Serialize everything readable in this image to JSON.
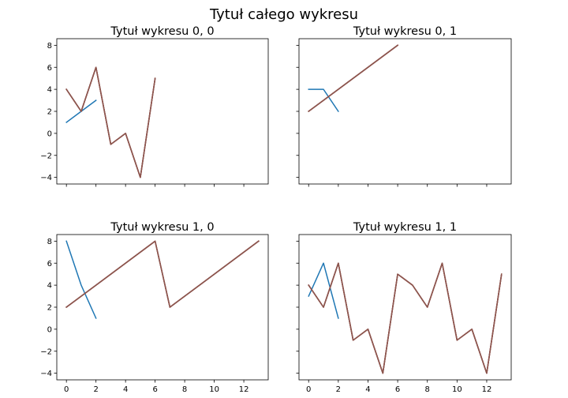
{
  "figure": {
    "suptitle": "Tytuł całego wykresu"
  },
  "chart_data": [
    {
      "type": "line",
      "title": "Tytuł wykresu 0, 0",
      "xlabel": "",
      "ylabel": "",
      "xlim": [
        -0.65,
        13.65
      ],
      "ylim": [
        -4.6,
        8.6
      ],
      "yticks": [
        -4,
        -2,
        0,
        2,
        4,
        6,
        8
      ],
      "xticks": [
        0,
        2,
        4,
        6,
        8,
        10,
        12
      ],
      "show_xticklabels": false,
      "show_yticklabels": true,
      "grid": false,
      "series": [
        {
          "color": "#1f77b4",
          "x": [
            0,
            1,
            2
          ],
          "y": [
            1,
            2,
            3
          ]
        },
        {
          "color": "#ff7f0e",
          "x": [
            0,
            1,
            2,
            3,
            4,
            5,
            6
          ],
          "y": [
            4,
            2,
            6,
            -1,
            0,
            -4,
            5
          ]
        },
        {
          "color": "#2ca02c",
          "x": [
            0,
            1,
            2,
            3,
            4,
            5,
            6
          ],
          "y": [
            4,
            2,
            6,
            -1,
            0,
            -4,
            5
          ]
        },
        {
          "color": "#d62728",
          "x": [
            0,
            1,
            2,
            3,
            4,
            5,
            6
          ],
          "y": [
            4,
            2,
            6,
            -1,
            0,
            -4,
            5
          ]
        },
        {
          "color": "#9467bd",
          "x": [
            0,
            1,
            2,
            3,
            4,
            5,
            6
          ],
          "y": [
            4,
            2,
            6,
            -1,
            0,
            -4,
            5
          ]
        },
        {
          "color": "#8c564b",
          "x": [
            0,
            1,
            2,
            3,
            4,
            5,
            6
          ],
          "y": [
            4,
            2,
            6,
            -1,
            0,
            -4,
            5
          ]
        }
      ]
    },
    {
      "type": "line",
      "title": "Tytuł wykresu 0, 1",
      "xlabel": "",
      "ylabel": "",
      "xlim": [
        -0.65,
        13.65
      ],
      "ylim": [
        -4.6,
        8.6
      ],
      "yticks": [
        -4,
        -2,
        0,
        2,
        4,
        6,
        8
      ],
      "xticks": [
        0,
        2,
        4,
        6,
        8,
        10,
        12
      ],
      "show_xticklabels": false,
      "show_yticklabels": false,
      "grid": false,
      "series": [
        {
          "color": "#1f77b4",
          "x": [
            0,
            1,
            2
          ],
          "y": [
            4,
            4,
            2
          ]
        },
        {
          "color": "#ff7f0e",
          "x": [
            0,
            6
          ],
          "y": [
            2,
            8
          ]
        },
        {
          "color": "#2ca02c",
          "x": [
            0,
            6
          ],
          "y": [
            2,
            8
          ]
        },
        {
          "color": "#d62728",
          "x": [
            0,
            6
          ],
          "y": [
            2,
            8
          ]
        },
        {
          "color": "#9467bd",
          "x": [
            0,
            6
          ],
          "y": [
            2,
            8
          ]
        },
        {
          "color": "#8c564b",
          "x": [
            0,
            6
          ],
          "y": [
            2,
            8
          ]
        }
      ]
    },
    {
      "type": "line",
      "title": "Tytuł wykresu 1, 0",
      "xlabel": "",
      "ylabel": "",
      "xlim": [
        -0.65,
        13.65
      ],
      "ylim": [
        -4.6,
        8.6
      ],
      "yticks": [
        -4,
        -2,
        0,
        2,
        4,
        6,
        8
      ],
      "xticks": [
        0,
        2,
        4,
        6,
        8,
        10,
        12
      ],
      "show_xticklabels": true,
      "show_yticklabels": true,
      "grid": false,
      "series": [
        {
          "color": "#1f77b4",
          "x": [
            0,
            1,
            2
          ],
          "y": [
            8,
            4,
            1
          ]
        },
        {
          "color": "#ff7f0e",
          "x": [
            0,
            6,
            7,
            13
          ],
          "y": [
            2,
            8,
            2,
            8
          ]
        },
        {
          "color": "#2ca02c",
          "x": [
            0,
            6,
            7,
            13
          ],
          "y": [
            2,
            8,
            2,
            8
          ]
        },
        {
          "color": "#d62728",
          "x": [
            0,
            6,
            7,
            13
          ],
          "y": [
            2,
            8,
            2,
            8
          ]
        },
        {
          "color": "#9467bd",
          "x": [
            0,
            6,
            7,
            13
          ],
          "y": [
            2,
            8,
            2,
            8
          ]
        },
        {
          "color": "#8c564b",
          "x": [
            0,
            6,
            7,
            13
          ],
          "y": [
            2,
            8,
            2,
            8
          ]
        }
      ]
    },
    {
      "type": "line",
      "title": "Tytuł wykresu 1, 1",
      "xlabel": "",
      "ylabel": "",
      "xlim": [
        -0.65,
        13.65
      ],
      "ylim": [
        -4.6,
        8.6
      ],
      "yticks": [
        -4,
        -2,
        0,
        2,
        4,
        6,
        8
      ],
      "xticks": [
        0,
        2,
        4,
        6,
        8,
        10,
        12
      ],
      "show_xticklabels": true,
      "show_yticklabels": false,
      "grid": false,
      "series": [
        {
          "color": "#1f77b4",
          "x": [
            0,
            1,
            2
          ],
          "y": [
            3,
            6,
            1
          ]
        },
        {
          "color": "#ff7f0e",
          "x": [
            0,
            1,
            2,
            3,
            4,
            5,
            6,
            7,
            8,
            9,
            10,
            11,
            12,
            13
          ],
          "y": [
            4,
            2,
            6,
            -1,
            0,
            -4,
            5,
            4,
            2,
            6,
            -1,
            0,
            -4,
            5
          ]
        },
        {
          "color": "#2ca02c",
          "x": [
            0,
            1,
            2,
            3,
            4,
            5,
            6,
            7,
            8,
            9,
            10,
            11,
            12,
            13
          ],
          "y": [
            4,
            2,
            6,
            -1,
            0,
            -4,
            5,
            4,
            2,
            6,
            -1,
            0,
            -4,
            5
          ]
        },
        {
          "color": "#d62728",
          "x": [
            0,
            1,
            2,
            3,
            4,
            5,
            6,
            7,
            8,
            9,
            10,
            11,
            12,
            13
          ],
          "y": [
            4,
            2,
            6,
            -1,
            0,
            -4,
            5,
            4,
            2,
            6,
            -1,
            0,
            -4,
            5
          ]
        },
        {
          "color": "#9467bd",
          "x": [
            0,
            1,
            2,
            3,
            4,
            5,
            6,
            7,
            8,
            9,
            10,
            11,
            12,
            13
          ],
          "y": [
            4,
            2,
            6,
            -1,
            0,
            -4,
            5,
            4,
            2,
            6,
            -1,
            0,
            -4,
            5
          ]
        },
        {
          "color": "#8c564b",
          "x": [
            0,
            1,
            2,
            3,
            4,
            5,
            6,
            7,
            8,
            9,
            10,
            11,
            12,
            13
          ],
          "y": [
            4,
            2,
            6,
            -1,
            0,
            -4,
            5,
            4,
            2,
            6,
            -1,
            0,
            -4,
            5
          ]
        }
      ]
    }
  ]
}
